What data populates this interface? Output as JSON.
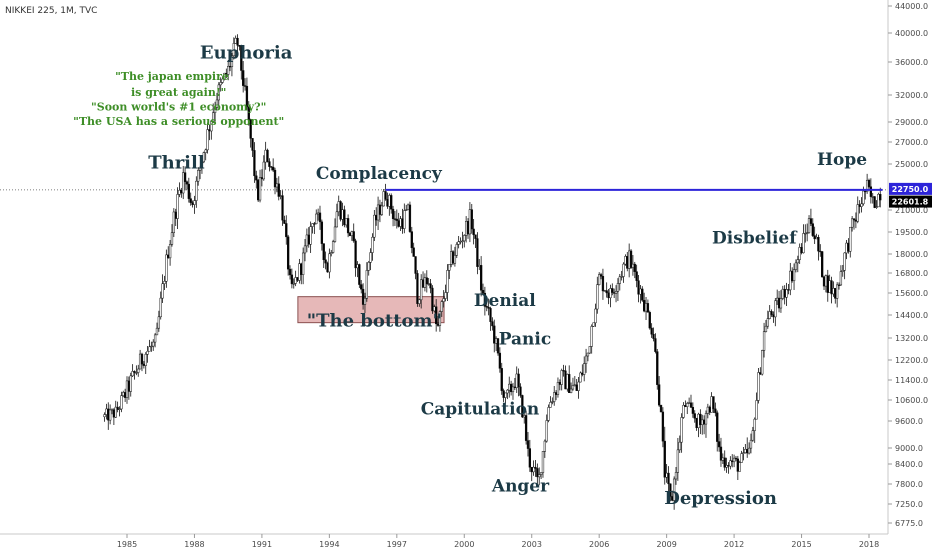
{
  "chart_data": {
    "type": "candlestick",
    "title": "NIKKEI 225, 1M, TVC",
    "colors": {
      "up": "#ffffff",
      "down": "#000000",
      "outline": "#111111",
      "hline": "#2d24d9",
      "box_fill": "#e6b8b8",
      "box_stroke": "#8a5050",
      "label": "#1c3a46",
      "quote": "#3e8e27",
      "price_tag": "#2d24d9",
      "last_tag": "#000000"
    },
    "x_ticks": [
      {
        "year": 1985,
        "label": "1985"
      },
      {
        "year": 1988,
        "label": "1988"
      },
      {
        "year": 1991,
        "label": "1991"
      },
      {
        "year": 1994,
        "label": "1994"
      },
      {
        "year": 1997,
        "label": "1997"
      },
      {
        "year": 2000,
        "label": "2000"
      },
      {
        "year": 2003,
        "label": "2003"
      },
      {
        "year": 2006,
        "label": "2006"
      },
      {
        "year": 2009,
        "label": "2009"
      },
      {
        "year": 2012,
        "label": "2012"
      },
      {
        "year": 2015,
        "label": "2015"
      },
      {
        "year": 2018,
        "label": "2018"
      }
    ],
    "y_ticks": [
      {
        "value": 44000,
        "label": "44000.0"
      },
      {
        "value": 40000,
        "label": "40000.0"
      },
      {
        "value": 36000,
        "label": "36000.0"
      },
      {
        "value": 32000,
        "label": "32000.0"
      },
      {
        "value": 29000,
        "label": "29000.0"
      },
      {
        "value": 27000,
        "label": "27000.0"
      },
      {
        "value": 25000,
        "label": "25000.0"
      },
      {
        "value": 21000,
        "label": "21000.0"
      },
      {
        "value": 19500,
        "label": "19500.0"
      },
      {
        "value": 18000,
        "label": "18000.0"
      },
      {
        "value": 16800,
        "label": "16800.0"
      },
      {
        "value": 15600,
        "label": "15600.0"
      },
      {
        "value": 14400,
        "label": "14400.0"
      },
      {
        "value": 13200,
        "label": "13200.0"
      },
      {
        "value": 12200,
        "label": "12200.0"
      },
      {
        "value": 11400,
        "label": "11400.0"
      },
      {
        "value": 10600,
        "label": "10600.0"
      },
      {
        "value": 9600,
        "label": "9600.0"
      },
      {
        "value": 9000,
        "label": "9000.0"
      },
      {
        "value": 8400,
        "label": "8400.0"
      },
      {
        "value": 7800,
        "label": "7800.0"
      },
      {
        "value": 7250,
        "label": "7250.0"
      },
      {
        "value": 6775,
        "label": "6775.0"
      }
    ],
    "price_tags": [
      {
        "value": 22750,
        "label": "22750.0",
        "kind": "level"
      },
      {
        "value": 22601.8,
        "label": "22601.8",
        "kind": "last"
      }
    ],
    "horizontal_line": {
      "value": 22750,
      "from_year": 1996.5,
      "to_year": 2018.6
    },
    "box": {
      "from_year": 1992.6,
      "to_year": 1999.1,
      "low": 14000,
      "high": 15400
    },
    "anchors": [
      [
        1984.0,
        9800
      ],
      [
        1984.5,
        10000
      ],
      [
        1985.0,
        11000
      ],
      [
        1985.8,
        12500
      ],
      [
        1986.3,
        13000
      ],
      [
        1986.8,
        18000
      ],
      [
        1987.5,
        24000
      ],
      [
        1987.9,
        21500
      ],
      [
        1988.5,
        27000
      ],
      [
        1989.0,
        32000
      ],
      [
        1989.5,
        35000
      ],
      [
        1989.9,
        38900
      ],
      [
        1990.4,
        29000
      ],
      [
        1990.8,
        22000
      ],
      [
        1991.2,
        26000
      ],
      [
        1991.8,
        22500
      ],
      [
        1992.3,
        15500
      ],
      [
        1992.8,
        17500
      ],
      [
        1993.4,
        21000
      ],
      [
        1993.9,
        17000
      ],
      [
        1994.4,
        21500
      ],
      [
        1995.0,
        19000
      ],
      [
        1995.5,
        15000
      ],
      [
        1996.0,
        20000
      ],
      [
        1996.5,
        22500
      ],
      [
        1997.0,
        20000
      ],
      [
        1997.5,
        20800
      ],
      [
        1997.9,
        15500
      ],
      [
        1998.4,
        16500
      ],
      [
        1998.8,
        13500
      ],
      [
        1999.4,
        17500
      ],
      [
        2000.3,
        20500
      ],
      [
        2000.8,
        15500
      ],
      [
        2001.3,
        13500
      ],
      [
        2001.8,
        10500
      ],
      [
        2002.3,
        11500
      ],
      [
        2002.9,
        8500
      ],
      [
        2003.3,
        7800
      ],
      [
        2003.8,
        10500
      ],
      [
        2004.3,
        11500
      ],
      [
        2005.0,
        11000
      ],
      [
        2005.5,
        12500
      ],
      [
        2006.0,
        16500
      ],
      [
        2006.5,
        15500
      ],
      [
        2007.3,
        17800
      ],
      [
        2007.9,
        15500
      ],
      [
        2008.4,
        13500
      ],
      [
        2008.9,
        8200
      ],
      [
        2009.2,
        7200
      ],
      [
        2009.8,
        10400
      ],
      [
        2010.5,
        9500
      ],
      [
        2011.0,
        10500
      ],
      [
        2011.4,
        8600
      ],
      [
        2012.2,
        8400
      ],
      [
        2012.8,
        9000
      ],
      [
        2013.4,
        14000
      ],
      [
        2014.0,
        15000
      ],
      [
        2014.8,
        17500
      ],
      [
        2015.4,
        20500
      ],
      [
        2016.0,
        16500
      ],
      [
        2016.5,
        15500
      ],
      [
        2017.2,
        19500
      ],
      [
        2017.9,
        23000
      ],
      [
        2018.2,
        21500
      ],
      [
        2018.5,
        22600
      ]
    ],
    "annotations": [
      {
        "text": "Euphoria",
        "year": 1990.3,
        "value": 36500,
        "size": 18,
        "style": "label"
      },
      {
        "text": "Thrill",
        "year": 1987.2,
        "value": 24600,
        "size": 18,
        "style": "label"
      },
      {
        "text": "Complacency",
        "year": 1996.2,
        "value": 23700,
        "size": 17,
        "style": "label"
      },
      {
        "text": "\"The bottom\"",
        "year": 1996.0,
        "value": 13800,
        "size": 18,
        "style": "label"
      },
      {
        "text": "Denial",
        "year": 2001.8,
        "value": 14900,
        "size": 17,
        "style": "label"
      },
      {
        "text": "Panic",
        "year": 2002.7,
        "value": 12900,
        "size": 17,
        "style": "label"
      },
      {
        "text": "Capitulation",
        "year": 2000.7,
        "value": 9900,
        "size": 17,
        "style": "label"
      },
      {
        "text": "Anger",
        "year": 2002.5,
        "value": 7600,
        "size": 17,
        "style": "label"
      },
      {
        "text": "Depression",
        "year": 2011.4,
        "value": 7250,
        "size": 18,
        "style": "label"
      },
      {
        "text": "Disbelief",
        "year": 2012.9,
        "value": 18700,
        "size": 17,
        "style": "label"
      },
      {
        "text": "Hope",
        "year": 2016.8,
        "value": 24900,
        "size": 17,
        "style": "label"
      },
      {
        "text": "\"The japan empire",
        "year": 1987.0,
        "value": 33800,
        "size": 11,
        "style": "quote"
      },
      {
        "text": "is great again!\"",
        "year": 1987.3,
        "value": 31900,
        "size": 11,
        "style": "quote"
      },
      {
        "text": "\"Soon world's #1 economy?\"",
        "year": 1987.3,
        "value": 30300,
        "size": 11,
        "style": "quote"
      },
      {
        "text": "\"The USA has a serious opponent\"",
        "year": 1987.3,
        "value": 28700,
        "size": 11,
        "style": "quote"
      }
    ]
  }
}
